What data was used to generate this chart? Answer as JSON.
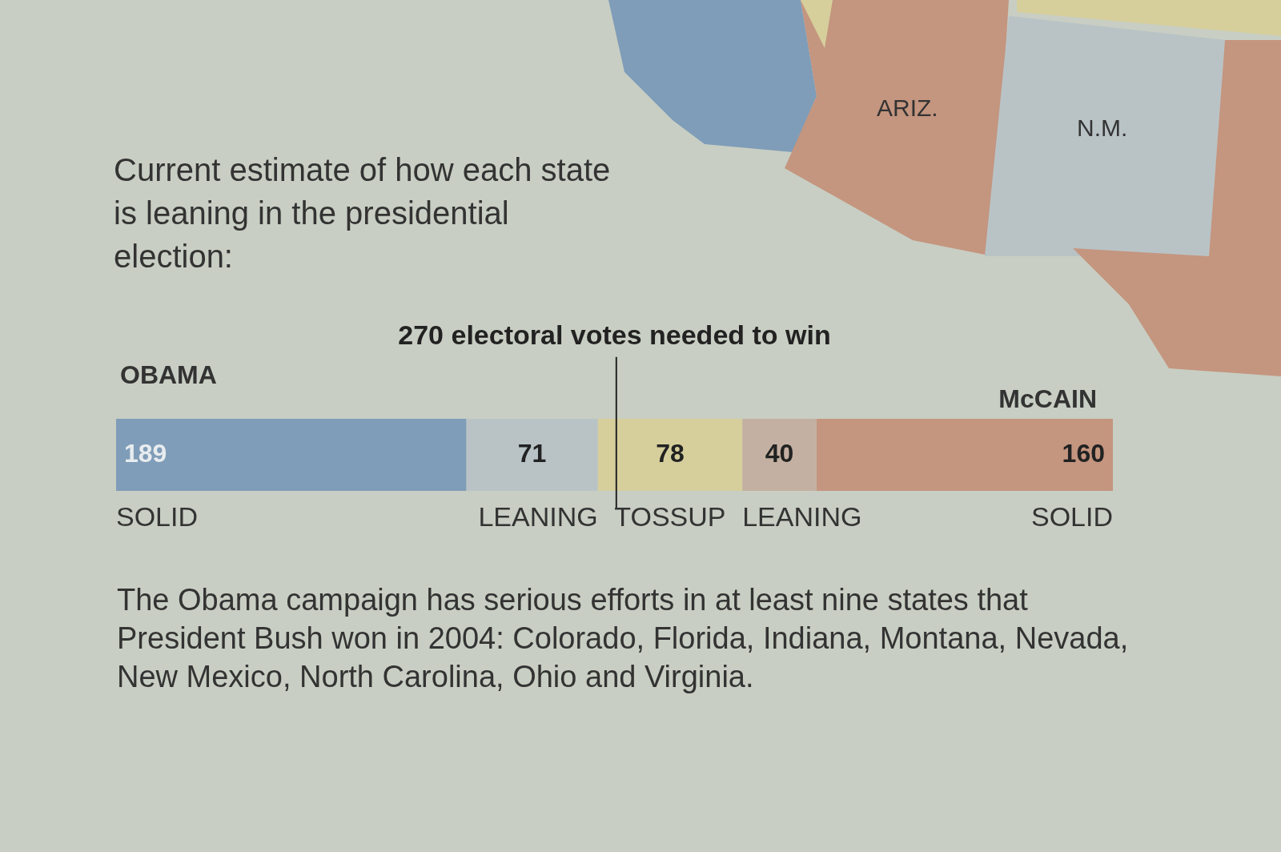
{
  "chart_data": {
    "type": "bar",
    "orientation": "horizontal",
    "stacked": true,
    "title": "270 electoral votes needed to win",
    "subtitle": "Current estimate of how each state is leaning in the presidential election:",
    "categories": [
      null
    ],
    "series": [
      {
        "name": "SOLID",
        "color": "#7f9db8",
        "values": [
          189
        ]
      },
      {
        "name": "LEANING",
        "color": "#b9c3c6",
        "values": [
          71
        ]
      },
      {
        "name": "TOSSUP",
        "color": "#d6cf9c",
        "values": [
          78
        ]
      },
      {
        "name": "LEANING",
        "color": "#c4b0a2",
        "values": [
          40
        ]
      },
      {
        "name": "SOLID",
        "color": "#c4957f",
        "values": [
          160
        ]
      }
    ],
    "xlim": [
      0,
      538
    ],
    "tick_labels": false,
    "data_labels": true,
    "ref_lines": [
      {
        "axis": "x",
        "value": 270,
        "color": "#222222"
      }
    ],
    "annotations": [
      "OBAMA",
      "McCAIN",
      "The Obama campaign has serious efforts in at least nine states that President Bush won in 2004: Colorado, Florida, Indiana, Montana, Nevada, New Mexico, North Carolina, Ohio and Virginia.",
      "ARIZ.",
      "N.M."
    ]
  }
}
